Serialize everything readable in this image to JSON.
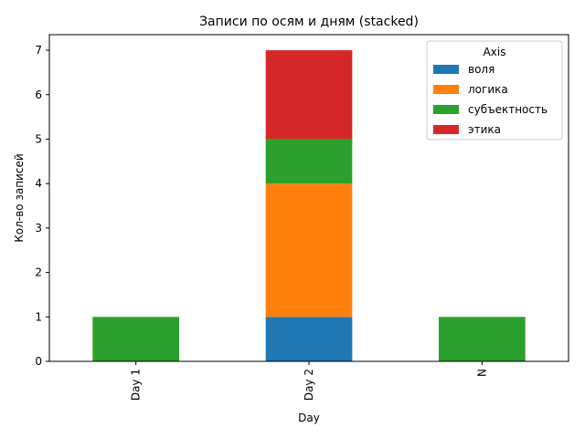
{
  "chart_data": {
    "type": "bar",
    "stacked": true,
    "title": "Записи по осям и дням (stacked)",
    "xlabel": "Day",
    "ylabel": "Кол-во записей",
    "categories": [
      "Day 1",
      "Day 2",
      "N"
    ],
    "ylim": [
      0,
      7.35
    ],
    "yticks": [
      0,
      1,
      2,
      3,
      4,
      5,
      6,
      7
    ],
    "grid": false,
    "legend": {
      "title": "Axis",
      "placement": "top-right"
    },
    "series": [
      {
        "name": "воля",
        "color": "#1f77b4",
        "values": [
          0,
          1,
          0
        ]
      },
      {
        "name": "логика",
        "color": "#ff7f0e",
        "values": [
          0,
          3,
          0
        ]
      },
      {
        "name": "субъектность",
        "color": "#2ca02c",
        "values": [
          1,
          1,
          1
        ]
      },
      {
        "name": "этика",
        "color": "#d62728",
        "values": [
          0,
          2,
          0
        ]
      }
    ]
  }
}
